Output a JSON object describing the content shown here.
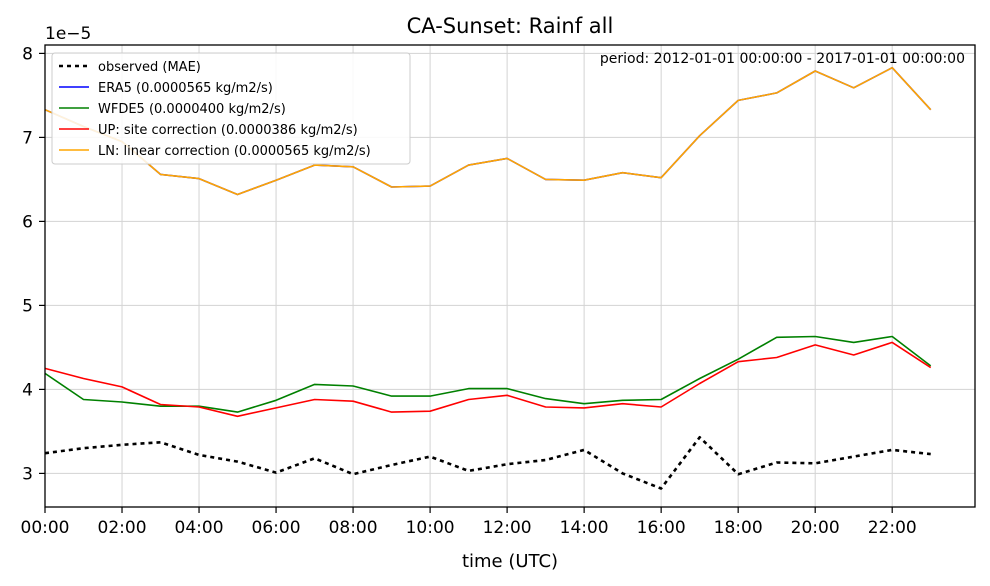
{
  "chart_data": {
    "type": "line",
    "title": "CA-Sunset: Rainf all",
    "xlabel": "time (UTC)",
    "ylabel": "",
    "y_multiplier_label": "1e−5",
    "annotation": "period: 2012-01-01 00:00:00 - 2017-01-01 00:00:00",
    "x": [
      0,
      1,
      2,
      3,
      4,
      5,
      6,
      7,
      8,
      9,
      10,
      11,
      12,
      13,
      14,
      15,
      16,
      17,
      18,
      19,
      20,
      21,
      22,
      23
    ],
    "x_ticks": [
      "00:00",
      "02:00",
      "04:00",
      "06:00",
      "08:00",
      "10:00",
      "12:00",
      "14:00",
      "16:00",
      "18:00",
      "20:00",
      "22:00"
    ],
    "y_ticks": [
      "3",
      "4",
      "5",
      "6",
      "7",
      "8"
    ],
    "xlim": [
      0,
      24.15
    ],
    "ylim": [
      2.6,
      8.1
    ],
    "grid": true,
    "legend_position": "upper-left",
    "series": [
      {
        "name": "observed (MAE)",
        "color": "#000000",
        "style": "dotted",
        "values": [
          3.24,
          3.3,
          3.34,
          3.37,
          3.22,
          3.14,
          3.01,
          3.18,
          2.99,
          3.1,
          3.2,
          3.03,
          3.11,
          3.16,
          3.28,
          3.0,
          2.82,
          3.43,
          2.99,
          3.13,
          3.12,
          3.2,
          3.28,
          3.23
        ]
      },
      {
        "name": "ERA5 (0.0000565 kg/m2/s)",
        "color": "#0000ff",
        "style": "solid",
        "values": [
          7.33,
          7.13,
          6.95,
          6.56,
          6.51,
          6.32,
          6.49,
          6.67,
          6.65,
          6.41,
          6.42,
          6.67,
          6.75,
          6.5,
          6.49,
          6.58,
          6.52,
          7.02,
          7.44,
          7.53,
          7.79,
          7.59,
          7.83,
          7.33
        ]
      },
      {
        "name": "WFDE5 (0.0000400 kg/m2/s)",
        "color": "#008000",
        "style": "solid",
        "values": [
          4.19,
          3.88,
          3.85,
          3.8,
          3.8,
          3.73,
          3.87,
          4.06,
          4.04,
          3.92,
          3.92,
          4.01,
          4.01,
          3.89,
          3.83,
          3.87,
          3.88,
          4.13,
          4.36,
          4.62,
          4.63,
          4.56,
          4.63,
          4.28
        ]
      },
      {
        "name": "UP: site correction (0.0000386 kg/m2/s)",
        "color": "#ff0000",
        "style": "solid",
        "values": [
          4.25,
          4.13,
          4.03,
          3.82,
          3.79,
          3.68,
          3.78,
          3.88,
          3.86,
          3.73,
          3.74,
          3.88,
          3.93,
          3.79,
          3.78,
          3.83,
          3.79,
          4.07,
          4.33,
          4.38,
          4.53,
          4.41,
          4.56,
          4.26
        ]
      },
      {
        "name": "LN: linear correction (0.0000565 kg/m2/s)",
        "color": "#ffa500",
        "style": "solid",
        "values": [
          7.33,
          7.13,
          6.95,
          6.56,
          6.51,
          6.32,
          6.49,
          6.67,
          6.65,
          6.41,
          6.42,
          6.67,
          6.75,
          6.5,
          6.49,
          6.58,
          6.52,
          7.02,
          7.44,
          7.53,
          7.79,
          7.59,
          7.83,
          7.33
        ]
      }
    ]
  }
}
